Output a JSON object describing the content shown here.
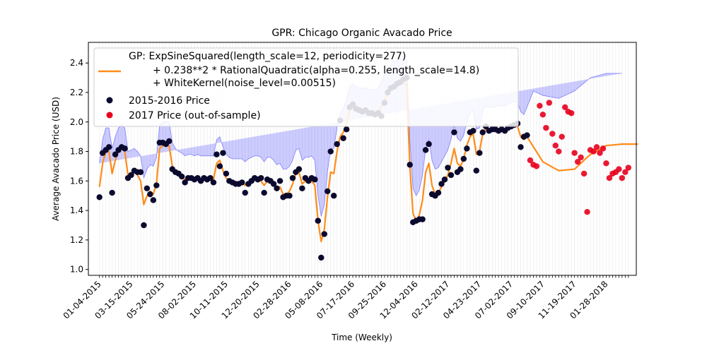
{
  "chart_data": {
    "type": "scatter",
    "title": "GPR: Chicago Organic Avacado Price",
    "xlabel": "Time (Weekly)",
    "ylabel": "Average Avacado Price (USD)",
    "ylim": [
      0.96,
      2.54
    ],
    "yticks": [
      "1.0",
      "1.2",
      "1.4",
      "1.6",
      "1.8",
      "2.0",
      "2.2",
      "2.4"
    ],
    "xticks": [
      "01-04-2015",
      "03-15-2015",
      "05-24-2015",
      "08-02-2015",
      "10-11-2015",
      "12-20-2015",
      "02-28-2016",
      "05-08-2016",
      "07-17-2016",
      "09-25-2016",
      "12-04-2016",
      "02-12-2017",
      "04-23-2017",
      "07-02-2017",
      "09-10-2017",
      "11-19-2017",
      "01-28-2018"
    ],
    "xtick_week_index": [
      0,
      10,
      20,
      30,
      40,
      50,
      60,
      70,
      80,
      90,
      100,
      110,
      120,
      130,
      140,
      150,
      160
    ],
    "x_range_weeks": [
      -3.5,
      169.5
    ],
    "grid": "vertical lines at every week",
    "legend": {
      "location": "top-left",
      "entries": [
        {
          "label": "GP: ExpSineSquared(length_scale=12, periodicity=277)",
          "kind": "line",
          "color": "#ff8c1a"
        },
        {
          "label": "+ 0.238**2 * RationalQuadratic(alpha=0.255, length_scale=14.8)",
          "kind": "text"
        },
        {
          "label": "+ WhiteKernel(noise_level=0.00515)",
          "kind": "text"
        },
        {
          "label": "2015-2016 Price",
          "kind": "marker",
          "color": "#0b0a2e"
        },
        {
          "label": "2017 Price (out-of-sample)",
          "kind": "marker",
          "color": "#e8001c"
        }
      ]
    },
    "colors": {
      "observed": "#0b0a2e",
      "out_of_sample": "#e8001c",
      "gp_mean": "#ff8c1a",
      "ci_fill": "#0000ff",
      "ci_edge": "#4040ff"
    },
    "series": [
      {
        "name": "2015-2016 Price",
        "x_week_index": [
          0,
          1,
          2,
          3,
          4,
          5,
          6,
          7,
          8,
          9,
          10,
          11,
          12,
          13,
          14,
          15,
          16,
          17,
          18,
          19,
          20,
          21,
          22,
          23,
          24,
          25,
          26,
          27,
          28,
          29,
          30,
          31,
          32,
          33,
          34,
          35,
          36,
          37,
          38,
          39,
          40,
          41,
          42,
          43,
          44,
          45,
          46,
          47,
          48,
          49,
          50,
          51,
          52,
          53,
          54,
          55,
          56,
          57,
          58,
          59,
          60,
          61,
          62,
          63,
          64,
          65,
          66,
          67,
          68,
          69,
          70,
          71,
          72,
          73,
          74,
          75,
          76,
          77,
          78,
          79,
          80,
          81,
          82,
          83,
          84,
          85,
          86,
          87,
          88,
          89,
          90,
          91,
          92,
          93,
          94,
          95,
          96,
          97,
          98,
          99,
          100,
          101,
          102,
          103,
          104,
          105,
          106,
          107,
          108,
          109,
          110,
          111,
          112,
          113,
          114,
          115,
          116,
          117,
          118,
          119,
          120,
          121,
          122,
          123,
          124,
          125,
          126,
          127,
          128,
          129,
          130,
          131,
          132,
          133,
          134,
          135
        ],
        "y": [
          1.49,
          1.79,
          1.81,
          1.83,
          1.52,
          1.78,
          1.81,
          1.83,
          1.82,
          1.62,
          1.64,
          1.67,
          1.66,
          1.66,
          1.3,
          1.55,
          1.51,
          1.47,
          1.57,
          1.86,
          1.86,
          1.85,
          1.87,
          1.68,
          1.66,
          1.65,
          1.63,
          1.59,
          1.62,
          1.62,
          1.61,
          1.62,
          1.6,
          1.62,
          1.61,
          1.62,
          1.59,
          1.78,
          1.7,
          1.79,
          1.65,
          1.6,
          1.59,
          1.58,
          1.58,
          1.59,
          1.52,
          1.58,
          1.6,
          1.62,
          1.61,
          1.62,
          1.52,
          1.61,
          1.6,
          1.58,
          1.55,
          1.6,
          1.49,
          1.5,
          1.5,
          1.62,
          1.66,
          1.68,
          1.55,
          1.62,
          1.6,
          1.62,
          1.61,
          1.33,
          1.08,
          1.24,
          1.53,
          1.8,
          1.5,
          1.85,
          2.01,
          1.89,
          1.95,
          2.1,
          2.12,
          2.09,
          2.08,
          2.07,
          2.08,
          2.06,
          2.06,
          2.05,
          2.06,
          2.04,
          2.13,
          2.2,
          2.23,
          2.24,
          2.26,
          2.27,
          2.29,
          2.3,
          1.71,
          1.32,
          1.33,
          1.34,
          1.34,
          1.81,
          1.85,
          1.51,
          1.5,
          1.52,
          1.58,
          1.61,
          1.69,
          1.64,
          1.93,
          1.66,
          1.68,
          1.75,
          1.82,
          1.93,
          1.94,
          1.67,
          1.79,
          1.93,
          1.97,
          1.94,
          1.95,
          1.95,
          1.94,
          1.95,
          1.94,
          1.96,
          1.97,
          1.98,
          1.99,
          1.83,
          1.9,
          1.91
        ]
      },
      {
        "name": "2017 Price (out-of-sample)",
        "x_week_index": [
          136,
          137,
          138,
          139,
          140,
          141,
          142,
          143,
          144,
          145,
          146,
          147,
          148,
          149,
          150,
          151,
          152,
          153,
          154,
          155,
          156,
          157,
          158,
          159,
          160,
          161,
          162,
          163,
          164,
          165,
          166,
          167
        ],
        "y": [
          1.74,
          1.71,
          1.7,
          2.11,
          2.05,
          1.96,
          2.13,
          1.92,
          1.84,
          1.8,
          1.9,
          2.1,
          2.07,
          2.06,
          1.79,
          1.73,
          1.76,
          1.65,
          1.39,
          1.81,
          1.8,
          1.83,
          1.79,
          1.82,
          1.72,
          1.62,
          1.65,
          1.66,
          1.68,
          1.62,
          1.66,
          1.69
        ]
      },
      {
        "name": "GP mean",
        "x_week_index": [
          0,
          1,
          2,
          3,
          4,
          5,
          6,
          7,
          8,
          9,
          10,
          11,
          12,
          13,
          14,
          15,
          16,
          17,
          18,
          19,
          20,
          21,
          22,
          23,
          24,
          25,
          26,
          27,
          28,
          29,
          30,
          31,
          32,
          33,
          34,
          35,
          36,
          37,
          38,
          39,
          40,
          41,
          42,
          43,
          44,
          45,
          46,
          47,
          48,
          49,
          50,
          51,
          52,
          53,
          54,
          55,
          56,
          57,
          58,
          59,
          60,
          61,
          62,
          63,
          64,
          65,
          66,
          67,
          68,
          69,
          70,
          71,
          72,
          73,
          74,
          75,
          76,
          77,
          78,
          79,
          80,
          81,
          82,
          83,
          84,
          85,
          86,
          87,
          88,
          89,
          90,
          91,
          92,
          93,
          94,
          95,
          96,
          97,
          98,
          99,
          100,
          101,
          102,
          103,
          104,
          105,
          106,
          107,
          108,
          109,
          110,
          111,
          112,
          113,
          114,
          115,
          116,
          117,
          118,
          119,
          120,
          121,
          122,
          123,
          124,
          125,
          126,
          127,
          128,
          129,
          130,
          131,
          132,
          133,
          134,
          135,
          140,
          145,
          150,
          155,
          160,
          165,
          170
        ],
        "y": [
          1.56,
          1.72,
          1.8,
          1.8,
          1.65,
          1.74,
          1.8,
          1.82,
          1.8,
          1.64,
          1.65,
          1.66,
          1.64,
          1.6,
          1.44,
          1.5,
          1.53,
          1.51,
          1.58,
          1.82,
          1.84,
          1.84,
          1.84,
          1.7,
          1.66,
          1.64,
          1.63,
          1.61,
          1.62,
          1.62,
          1.61,
          1.62,
          1.61,
          1.61,
          1.61,
          1.61,
          1.61,
          1.72,
          1.74,
          1.67,
          1.62,
          1.6,
          1.59,
          1.59,
          1.59,
          1.59,
          1.57,
          1.59,
          1.6,
          1.61,
          1.61,
          1.6,
          1.57,
          1.6,
          1.6,
          1.58,
          1.55,
          1.56,
          1.51,
          1.51,
          1.53,
          1.58,
          1.65,
          1.66,
          1.58,
          1.6,
          1.6,
          1.6,
          1.57,
          1.33,
          1.19,
          1.27,
          1.49,
          1.66,
          1.65,
          1.8,
          1.9,
          1.93,
          1.99,
          2.08,
          2.1,
          2.08,
          2.07,
          2.07,
          2.07,
          2.06,
          2.06,
          2.06,
          2.07,
          2.1,
          2.15,
          2.19,
          2.22,
          2.24,
          2.25,
          2.26,
          2.27,
          2.25,
          1.7,
          1.38,
          1.33,
          1.37,
          1.47,
          1.66,
          1.72,
          1.57,
          1.51,
          1.52,
          1.56,
          1.6,
          1.64,
          1.72,
          1.82,
          1.72,
          1.7,
          1.75,
          1.84,
          1.9,
          1.92,
          1.78,
          1.8,
          1.92,
          1.95,
          1.94,
          1.94,
          1.94,
          1.95,
          1.95,
          1.95,
          1.96,
          1.97,
          1.98,
          1.97,
          1.9,
          1.88,
          1.9,
          1.73,
          1.67,
          1.68,
          1.78,
          1.84,
          1.85,
          1.85
        ]
      },
      {
        "name": "confidence band",
        "x_week_index": [
          0,
          1,
          2,
          3,
          4,
          5,
          6,
          7,
          8,
          9,
          10,
          11,
          12,
          13,
          14,
          15,
          16,
          17,
          18,
          19,
          20,
          21,
          22,
          23,
          24,
          25,
          26,
          27,
          28,
          29,
          30,
          31,
          32,
          33,
          34,
          35,
          36,
          37,
          38,
          39,
          40,
          41,
          42,
          43,
          44,
          45,
          46,
          47,
          48,
          49,
          50,
          51,
          52,
          53,
          54,
          55,
          56,
          57,
          58,
          59,
          60,
          61,
          62,
          63,
          64,
          65,
          66,
          67,
          68,
          69,
          70,
          71,
          72,
          73,
          74,
          75,
          76,
          77,
          78,
          79,
          80,
          81,
          82,
          83,
          84,
          85,
          86,
          87,
          88,
          89,
          90,
          91,
          92,
          93,
          94,
          95,
          96,
          97,
          98,
          99,
          100,
          101,
          102,
          103,
          104,
          105,
          106,
          107,
          108,
          109,
          110,
          111,
          112,
          113,
          114,
          115,
          116,
          117,
          118,
          119,
          120,
          121,
          122,
          123,
          124,
          125,
          126,
          127,
          128,
          129,
          130,
          131,
          132,
          133,
          134,
          135,
          137,
          140,
          145,
          150,
          155,
          160,
          165,
          170
        ],
        "upper": [
          1.72,
          1.88,
          1.96,
          1.96,
          1.82,
          1.9,
          1.96,
          1.98,
          1.96,
          1.8,
          1.81,
          1.82,
          1.8,
          1.77,
          1.62,
          1.68,
          1.71,
          1.7,
          1.76,
          1.98,
          2.0,
          2.0,
          2.0,
          1.86,
          1.82,
          1.8,
          1.79,
          1.77,
          1.78,
          1.78,
          1.77,
          1.78,
          1.77,
          1.77,
          1.77,
          1.77,
          1.77,
          1.88,
          1.9,
          1.83,
          1.78,
          1.76,
          1.75,
          1.75,
          1.75,
          1.75,
          1.73,
          1.75,
          1.76,
          1.77,
          1.77,
          1.76,
          1.73,
          1.76,
          1.76,
          1.74,
          1.71,
          1.72,
          1.68,
          1.68,
          1.7,
          1.74,
          1.81,
          1.82,
          1.74,
          1.76,
          1.76,
          1.77,
          1.74,
          1.5,
          1.36,
          1.44,
          1.66,
          1.82,
          1.82,
          1.96,
          2.06,
          2.09,
          2.15,
          2.24,
          2.26,
          2.24,
          2.23,
          2.23,
          2.23,
          2.22,
          2.22,
          2.22,
          2.23,
          2.27,
          2.32,
          2.36,
          2.39,
          2.41,
          2.42,
          2.43,
          2.44,
          2.42,
          1.88,
          1.55,
          1.5,
          1.54,
          1.64,
          1.82,
          1.88,
          1.74,
          1.68,
          1.69,
          1.73,
          1.77,
          1.81,
          1.88,
          1.98,
          1.89,
          1.87,
          1.91,
          2.0,
          2.06,
          2.08,
          1.95,
          1.96,
          2.08,
          2.11,
          2.1,
          2.1,
          2.1,
          2.11,
          2.11,
          2.11,
          2.12,
          2.13,
          2.14,
          2.13,
          2.07,
          2.05,
          2.1,
          2.21,
          2.18,
          2.16,
          2.21,
          2.3,
          2.33,
          2.33
        ],
        "lower": [
          1.4,
          1.56,
          1.64,
          1.64,
          1.48,
          1.58,
          1.64,
          1.66,
          1.64,
          1.48,
          1.49,
          1.5,
          1.48,
          1.43,
          1.26,
          1.32,
          1.35,
          1.32,
          1.4,
          1.66,
          1.68,
          1.68,
          1.68,
          1.54,
          1.5,
          1.48,
          1.47,
          1.45,
          1.46,
          1.46,
          1.45,
          1.46,
          1.45,
          1.45,
          1.45,
          1.45,
          1.45,
          1.56,
          1.58,
          1.51,
          1.46,
          1.44,
          1.43,
          1.43,
          1.43,
          1.43,
          1.41,
          1.43,
          1.44,
          1.45,
          1.45,
          1.44,
          1.41,
          1.44,
          1.44,
          1.42,
          1.39,
          1.4,
          1.34,
          1.34,
          1.36,
          1.42,
          1.49,
          1.5,
          1.42,
          1.44,
          1.44,
          1.43,
          1.4,
          1.16,
          1.02,
          1.1,
          1.32,
          1.5,
          1.48,
          1.64,
          1.74,
          1.77,
          1.83,
          1.92,
          1.94,
          1.92,
          1.91,
          1.91,
          1.91,
          1.9,
          1.9,
          1.9,
          1.91,
          1.93,
          1.98,
          2.02,
          2.05,
          2.07,
          2.08,
          2.09,
          2.1,
          2.08,
          1.52,
          1.21,
          1.16,
          1.2,
          1.3,
          1.5,
          1.56,
          1.4,
          1.34,
          1.35,
          1.39,
          1.43,
          1.47,
          1.56,
          1.66,
          1.55,
          1.53,
          1.59,
          1.68,
          1.74,
          1.76,
          1.61,
          1.64,
          1.76,
          1.79,
          1.78,
          1.78,
          1.78,
          1.79,
          1.79,
          1.79,
          1.8,
          1.81,
          1.82,
          1.81,
          1.73,
          1.71,
          1.6,
          1.3,
          1.18,
          1.17,
          1.24,
          1.35,
          1.38,
          1.38
        ]
      }
    ]
  }
}
